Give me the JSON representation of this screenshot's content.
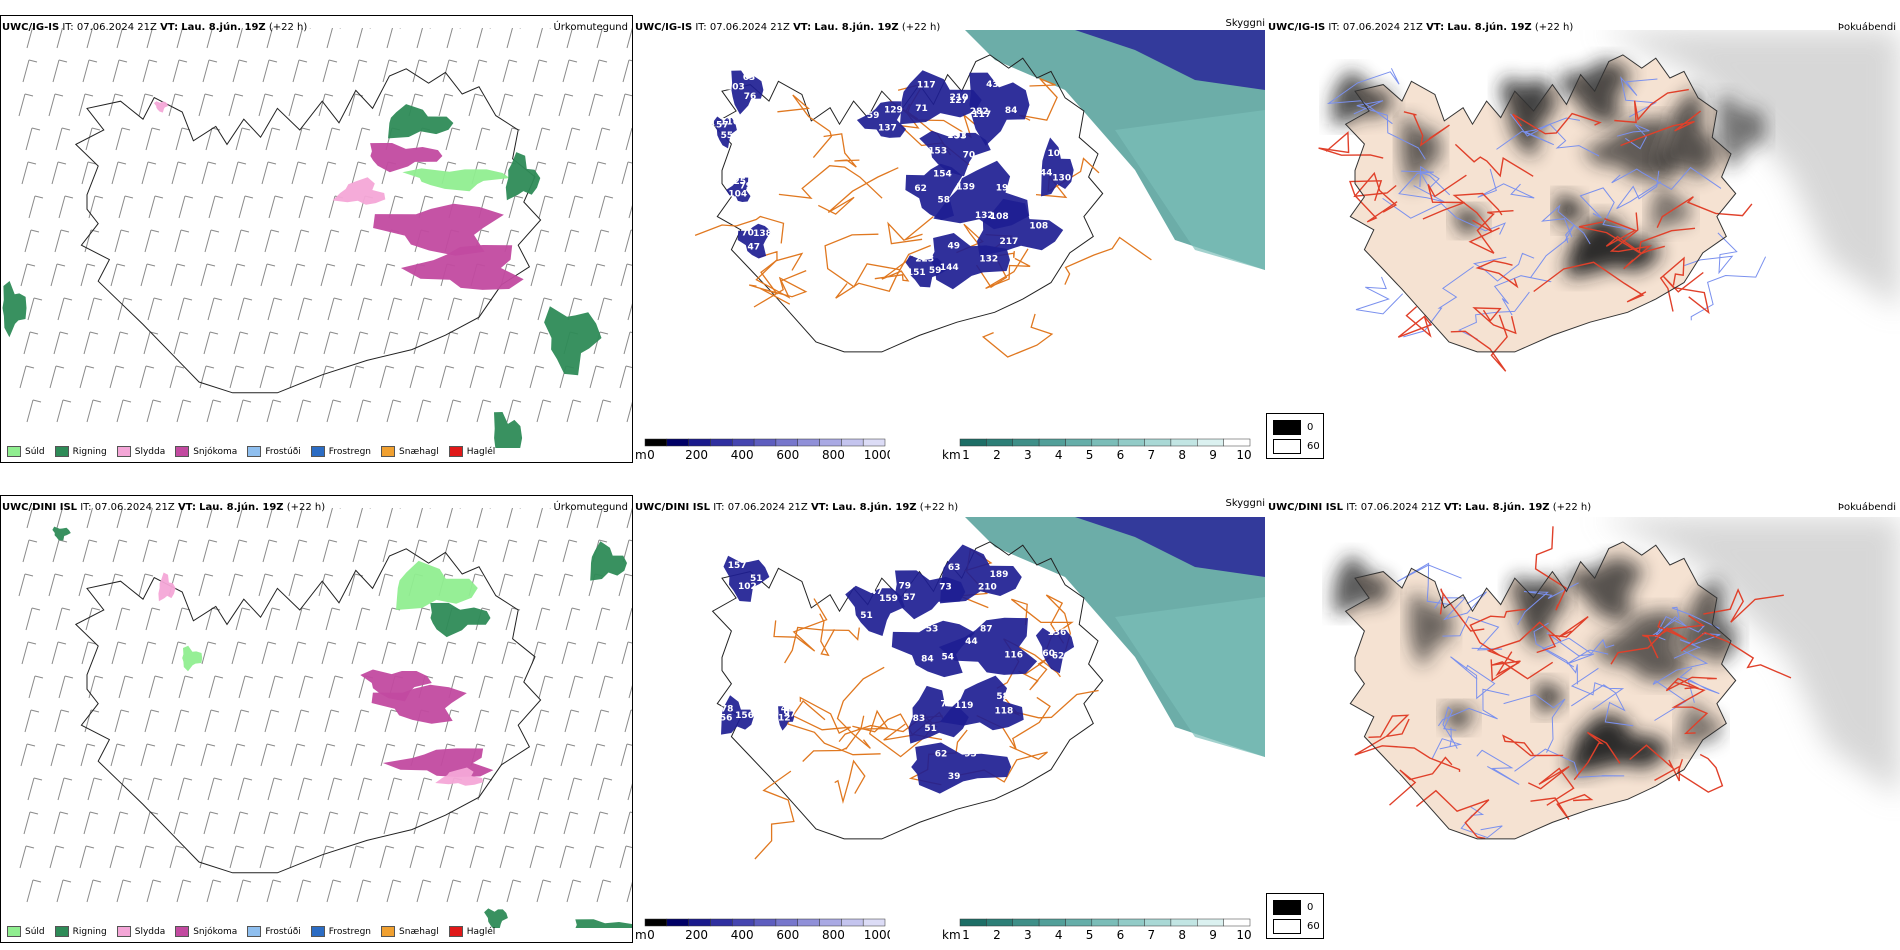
{
  "rows": [
    {
      "model": "UWC/IG-IS",
      "precip": {
        "model": "UWC/IG-IS",
        "it": "IT: 07.06.2024 21Z",
        "vt_label": "VT:",
        "vt": "Lau. 8.jún. 19Z",
        "lead": "(+22 h)",
        "title": "Úrkomutegund"
      },
      "cloud": {
        "model": "UWC/IG-IS",
        "it": "IT: 07.06.2024 21Z",
        "vt_label": "VT:",
        "vt": "Lau. 8.jún. 19Z",
        "lead": "(+22 h)",
        "title": "Skyggni"
      },
      "fog": {
        "model": "UWC/IG-IS",
        "it": "IT: 07.06.2024 21Z",
        "vt_label": "VT:",
        "vt": "Lau. 8.jún. 19Z",
        "lead": "(+22 h)",
        "title": "Þokuábendi"
      },
      "cloud_labels": [
        "210",
        "117",
        "151",
        "58",
        "59",
        "196",
        "217",
        "49",
        "59",
        "44",
        "63",
        "55",
        "70",
        "79",
        "71",
        "43",
        "70",
        "62",
        "129",
        "132",
        "108",
        "132",
        "151",
        "105",
        "76",
        "157",
        "138",
        "104",
        "117",
        "84",
        "153",
        "154",
        "137",
        "139",
        "108",
        "144",
        "223",
        "130",
        "103",
        "116",
        "47",
        "225",
        "127",
        "282",
        "93"
      ]
    },
    {
      "model": "UWC/DINI ISL",
      "precip": {
        "model": "UWC/DINI ISL",
        "it": "IT: 07.06.2024 21Z",
        "vt_label": "VT:",
        "vt": "Lau. 8.jún. 19Z",
        "lead": "(+22 h)",
        "title": "Úrkomutegund"
      },
      "cloud": {
        "model": "UWC/DINI ISL",
        "it": "IT: 07.06.2024 21Z",
        "vt_label": "VT:",
        "vt": "Lau. 8.jún. 19Z",
        "lead": "(+22 h)",
        "title": "Skyggni"
      },
      "fog": {
        "model": "UWC/DINI ISL",
        "it": "IT: 07.06.2024 21Z",
        "vt_label": "VT:",
        "vt": "Lau. 8.jún. 19Z",
        "lead": "(+22 h)",
        "title": "Þokuábendi"
      },
      "cloud_labels": [
        "189",
        "57",
        "47",
        "54",
        "44",
        "58",
        "51",
        "62",
        "51",
        "56",
        "48",
        "62",
        "63",
        "73",
        "51",
        "53",
        "116",
        "119",
        "78",
        "39",
        "157",
        "156",
        "112",
        "136",
        "210",
        "79",
        "159",
        "84",
        "87",
        "118",
        "83",
        "95",
        "102",
        "78",
        "97",
        "60"
      ]
    }
  ],
  "precip_legend": [
    {
      "label": "Súld",
      "color": "#90ee90"
    },
    {
      "label": "Rigning",
      "color": "#2e8b57"
    },
    {
      "label": "Slydda",
      "color": "#f4a6d7"
    },
    {
      "label": "Snjókoma",
      "color": "#c24aa0"
    },
    {
      "label": "Frostúði",
      "color": "#8fbfef"
    },
    {
      "label": "Frostregn",
      "color": "#2b6cc4"
    },
    {
      "label": "Snæhagl",
      "color": "#f0a030"
    },
    {
      "label": "Haglél",
      "color": "#e01818"
    }
  ],
  "cloud_base_bar": {
    "unit": "m",
    "ticks": [
      "0",
      "200",
      "400",
      "600",
      "800",
      "1000"
    ],
    "colors": [
      "#000000",
      "#000066",
      "#1a1a8c",
      "#2f2fa0",
      "#4646b0",
      "#5e5ebf",
      "#7777cc",
      "#9090d8",
      "#aaaae4",
      "#c4c4ee",
      "#dcdcf6"
    ]
  },
  "visibility_bar": {
    "unit": "km",
    "ticks": [
      "1",
      "2",
      "3",
      "4",
      "5",
      "6",
      "7",
      "8",
      "9",
      "10"
    ],
    "colors": [
      "#1d6e66",
      "#2d7f77",
      "#3f8f88",
      "#529f99",
      "#66aea9",
      "#7bbdb8",
      "#92cbc7",
      "#a9d8d5",
      "#c2e5e3",
      "#dbf1f0",
      "#ffffff"
    ]
  },
  "fog_legend": {
    "ticks": [
      "0",
      "60"
    ],
    "colors": [
      "#000000",
      "#ffffff"
    ]
  },
  "colors": {
    "coast": "#222222",
    "road_orange": "#e07820",
    "road_red": "#e0402a",
    "river": "#7a90ee",
    "land_fog": "#f5e2d2",
    "glacier_edge": "#333333"
  }
}
